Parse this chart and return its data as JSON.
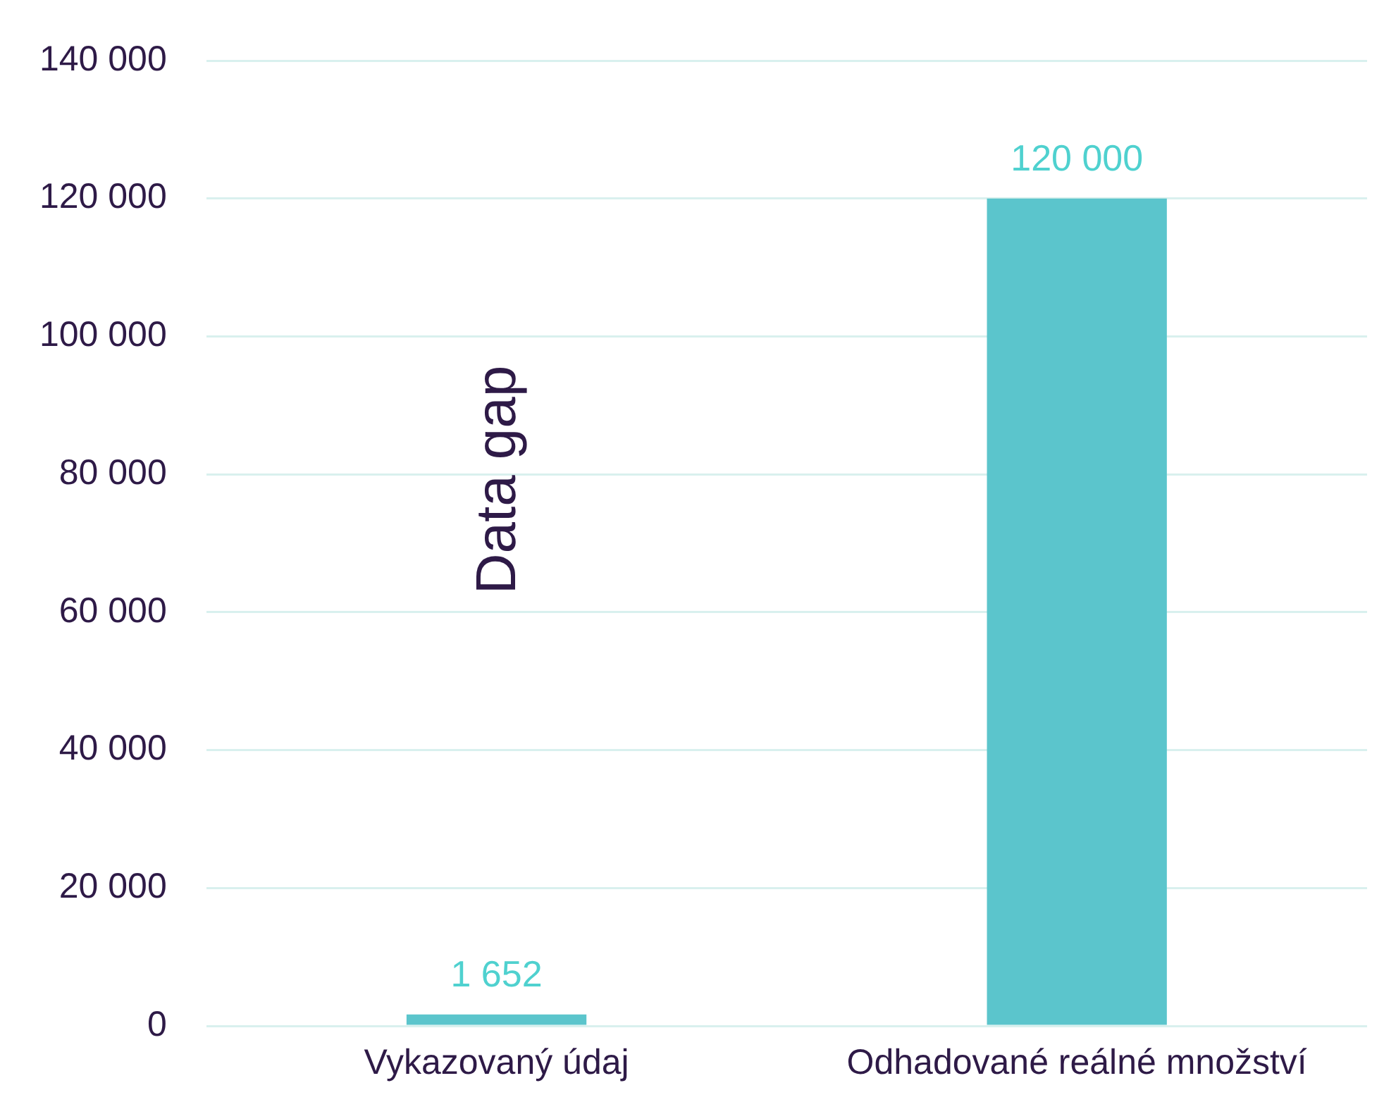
{
  "chart_data": {
    "type": "bar",
    "categories": [
      "Vykazovaný údaj",
      "Odhadované reálné množství"
    ],
    "values": [
      1652,
      120000
    ],
    "value_labels": [
      "1 652",
      "120 000"
    ],
    "color": "#5bc5cc",
    "ylim": [
      0,
      140000
    ],
    "yticks": [
      {
        "value": 0,
        "label": "0"
      },
      {
        "value": 20000,
        "label": "20 000"
      },
      {
        "value": 40000,
        "label": "40 000"
      },
      {
        "value": 60000,
        "label": "60 000"
      },
      {
        "value": 80000,
        "label": "80 000"
      },
      {
        "value": 100000,
        "label": "100 000"
      },
      {
        "value": 120000,
        "label": "120 000"
      },
      {
        "value": 140000,
        "label": "140 000"
      }
    ],
    "grid": "y",
    "legend": false,
    "annotations": [
      "Data gap"
    ]
  }
}
